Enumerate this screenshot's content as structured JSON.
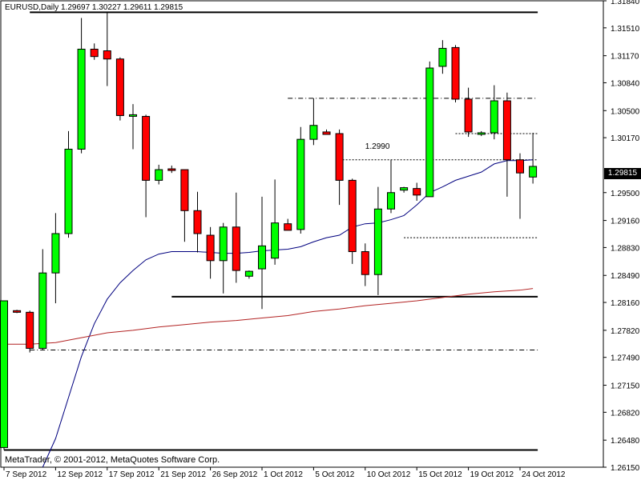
{
  "header": {
    "symbol_timeframe": "EURUSD,Daily",
    "ohlc": "1.29697 1.30227 1.29611 1.29815"
  },
  "footer": {
    "credit": "MetaTrader, © 2001-2012, MetaQuotes Software Corp."
  },
  "current_price": "1.29815",
  "annotations": {
    "top_level": "1.3170",
    "mid_level": "1.2990"
  },
  "chart_data": {
    "type": "candlestick",
    "symbol": "EURUSD",
    "timeframe": "Daily",
    "ylim": [
      1.2615,
      1.3184
    ],
    "y_ticks": [
      "1.31840",
      "1.31510",
      "1.31170",
      "1.30840",
      "1.30500",
      "1.30170",
      "1.29815",
      "1.29500",
      "1.29160",
      "1.28830",
      "1.28490",
      "1.28160",
      "1.27820",
      "1.27490",
      "1.27150",
      "1.26820",
      "1.26480",
      "1.26150"
    ],
    "x_tick_labels": [
      "7 Sep 2012",
      "12 Sep 2012",
      "17 Sep 2012",
      "21 Sep 2012",
      "26 Sep 2012",
      "1 Oct 2012",
      "5 Oct 2012",
      "10 Oct 2012",
      "15 Oct 2012",
      "19 Oct 2012",
      "24 Oct 2012"
    ],
    "x_tick_candle_index": [
      0,
      4,
      8,
      12,
      16,
      20,
      24,
      28,
      32,
      36,
      40
    ],
    "candles": [
      {
        "o": 1.2639,
        "h": 1.2818,
        "l": 1.2636,
        "c": 1.2818
      },
      {
        "o": 1.2806,
        "h": 1.2807,
        "l": 1.2803,
        "c": 1.2804
      },
      {
        "o": 1.2804,
        "h": 1.2806,
        "l": 1.2755,
        "c": 1.276
      },
      {
        "o": 1.276,
        "h": 1.2881,
        "l": 1.2758,
        "c": 1.2852
      },
      {
        "o": 1.2852,
        "h": 1.2925,
        "l": 1.2815,
        "c": 1.29
      },
      {
        "o": 1.29,
        "h": 1.3025,
        "l": 1.2895,
        "c": 1.3003
      },
      {
        "o": 1.3003,
        "h": 1.3163,
        "l": 1.2998,
        "c": 1.3125
      },
      {
        "o": 1.3125,
        "h": 1.3132,
        "l": 1.3112,
        "c": 1.3116
      },
      {
        "o": 1.3123,
        "h": 1.317,
        "l": 1.308,
        "c": 1.3113
      },
      {
        "o": 1.3113,
        "h": 1.3115,
        "l": 1.3038,
        "c": 1.3044
      },
      {
        "o": 1.3044,
        "h": 1.3058,
        "l": 1.3003,
        "c": 1.3045
      },
      {
        "o": 1.3043,
        "h": 1.3045,
        "l": 1.292,
        "c": 1.2965
      },
      {
        "o": 1.2965,
        "h": 1.2984,
        "l": 1.296,
        "c": 1.2978
      },
      {
        "o": 1.2979,
        "h": 1.2983,
        "l": 1.2974,
        "c": 1.2977
      },
      {
        "o": 1.2978,
        "h": 1.2978,
        "l": 1.289,
        "c": 1.2928
      },
      {
        "o": 1.2928,
        "h": 1.2951,
        "l": 1.2877,
        "c": 1.29
      },
      {
        "o": 1.2898,
        "h": 1.2908,
        "l": 1.2845,
        "c": 1.2867
      },
      {
        "o": 1.2867,
        "h": 1.2913,
        "l": 1.2827,
        "c": 1.2908
      },
      {
        "o": 1.2908,
        "h": 1.295,
        "l": 1.284,
        "c": 1.2855
      },
      {
        "o": 1.2848,
        "h": 1.2855,
        "l": 1.2845,
        "c": 1.2854
      },
      {
        "o": 1.2857,
        "h": 1.2945,
        "l": 1.2808,
        "c": 1.2885
      },
      {
        "o": 1.287,
        "h": 1.2966,
        "l": 1.2862,
        "c": 1.2913
      },
      {
        "o": 1.2912,
        "h": 1.2918,
        "l": 1.2904,
        "c": 1.2904
      },
      {
        "o": 1.2905,
        "h": 1.303,
        "l": 1.29,
        "c": 1.3015
      },
      {
        "o": 1.3015,
        "h": 1.3065,
        "l": 1.3008,
        "c": 1.3032
      },
      {
        "o": 1.3024,
        "h": 1.3027,
        "l": 1.3021,
        "c": 1.3021
      },
      {
        "o": 1.3022,
        "h": 1.3027,
        "l": 1.2935,
        "c": 1.2965
      },
      {
        "o": 1.2965,
        "h": 1.2967,
        "l": 1.2863,
        "c": 1.2878
      },
      {
        "o": 1.2878,
        "h": 1.2888,
        "l": 1.2836,
        "c": 1.285
      },
      {
        "o": 1.285,
        "h": 1.2957,
        "l": 1.2825,
        "c": 1.293
      },
      {
        "o": 1.293,
        "h": 1.299,
        "l": 1.2925,
        "c": 1.295
      },
      {
        "o": 1.2953,
        "h": 1.2957,
        "l": 1.295,
        "c": 1.2956
      },
      {
        "o": 1.2955,
        "h": 1.2962,
        "l": 1.294,
        "c": 1.2947
      },
      {
        "o": 1.2945,
        "h": 1.311,
        "l": 1.2945,
        "c": 1.3102
      },
      {
        "o": 1.3104,
        "h": 1.3136,
        "l": 1.3095,
        "c": 1.3126
      },
      {
        "o": 1.3127,
        "h": 1.313,
        "l": 1.306,
        "c": 1.3064
      },
      {
        "o": 1.3064,
        "h": 1.3078,
        "l": 1.3018,
        "c": 1.3024
      },
      {
        "o": 1.3022,
        "h": 1.3025,
        "l": 1.3019,
        "c": 1.3023
      },
      {
        "o": 1.3023,
        "h": 1.3081,
        "l": 1.3015,
        "c": 1.3062
      },
      {
        "o": 1.3062,
        "h": 1.3072,
        "l": 1.2945,
        "c": 1.299
      },
      {
        "o": 1.299,
        "h": 1.2998,
        "l": 1.2918,
        "c": 1.2974
      },
      {
        "o": 1.2969,
        "h": 1.3023,
        "l": 1.2961,
        "c": 1.2982
      }
    ],
    "horizontal_levels": [
      {
        "value": 1.317,
        "style": "solid",
        "from": 2,
        "to": 41
      },
      {
        "value": 1.3065,
        "style": "dashdot",
        "from": 22,
        "to": 41
      },
      {
        "value": 1.3022,
        "style": "dotted",
        "from": 35,
        "to": 41
      },
      {
        "value": 1.299,
        "style": "dotted",
        "from": 26,
        "to": 41
      },
      {
        "value": 1.2895,
        "style": "dotted",
        "from": 31,
        "to": 41
      },
      {
        "value": 1.2823,
        "style": "solid",
        "from": 13,
        "to": 41
      },
      {
        "value": 1.2758,
        "style": "dashdot",
        "from": 2,
        "to": 41
      },
      {
        "value": 1.2636,
        "style": "solid",
        "from": 0,
        "to": 41
      }
    ],
    "moving_averages": [
      {
        "color": "#00007f",
        "values": [
          [
            3,
            1.2615
          ],
          [
            4,
            1.265
          ],
          [
            5,
            1.27
          ],
          [
            6,
            1.275
          ],
          [
            7,
            1.279
          ],
          [
            8,
            1.282
          ],
          [
            9,
            1.284
          ],
          [
            10,
            1.2855
          ],
          [
            11,
            1.2868
          ],
          [
            12,
            1.2875
          ],
          [
            13,
            1.2878
          ],
          [
            14,
            1.2878
          ],
          [
            15,
            1.2878
          ],
          [
            16,
            1.2877
          ],
          [
            17,
            1.2876
          ],
          [
            18,
            1.2876
          ],
          [
            19,
            1.2877
          ],
          [
            20,
            1.2879
          ],
          [
            21,
            1.288
          ],
          [
            22,
            1.2881
          ],
          [
            23,
            1.2884
          ],
          [
            24,
            1.289
          ],
          [
            25,
            1.2895
          ],
          [
            26,
            1.2898
          ],
          [
            27,
            1.2908
          ],
          [
            28,
            1.2912
          ],
          [
            29,
            1.2913
          ],
          [
            30,
            1.2917
          ],
          [
            31,
            1.2922
          ],
          [
            32,
            1.2935
          ],
          [
            33,
            1.295
          ],
          [
            34,
            1.2957
          ],
          [
            35,
            1.2965
          ],
          [
            36,
            1.297
          ],
          [
            37,
            1.2975
          ],
          [
            38,
            1.2985
          ],
          [
            39,
            1.2989
          ],
          [
            40,
            1.2989
          ],
          [
            41,
            1.299
          ]
        ]
      },
      {
        "color": "#b22222",
        "values": [
          [
            0,
            1.2765
          ],
          [
            2,
            1.2765
          ],
          [
            4,
            1.2767
          ],
          [
            6,
            1.2773
          ],
          [
            8,
            1.2779
          ],
          [
            10,
            1.2782
          ],
          [
            12,
            1.2786
          ],
          [
            14,
            1.2789
          ],
          [
            16,
            1.2792
          ],
          [
            18,
            1.2794
          ],
          [
            20,
            1.2797
          ],
          [
            22,
            1.28
          ],
          [
            24,
            1.2805
          ],
          [
            26,
            1.2808
          ],
          [
            28,
            1.2812
          ],
          [
            30,
            1.2815
          ],
          [
            32,
            1.2818
          ],
          [
            34,
            1.2822
          ],
          [
            36,
            1.2826
          ],
          [
            38,
            1.2829
          ],
          [
            40,
            1.2831
          ],
          [
            41,
            1.2833
          ]
        ]
      }
    ],
    "colors": {
      "bull": "#00ff00",
      "bear": "#ff0000",
      "outline": "#000000",
      "background": "#ffffff",
      "axis": "#000000"
    }
  }
}
